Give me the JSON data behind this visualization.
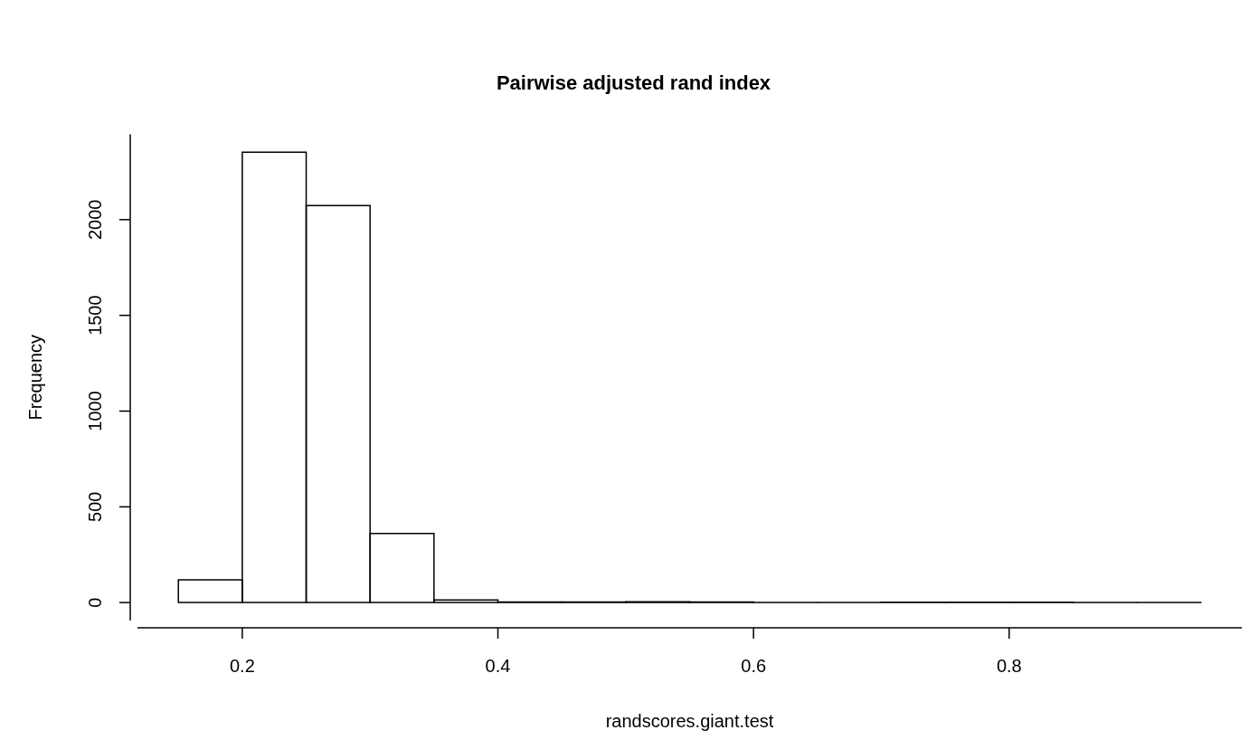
{
  "chart_data": {
    "type": "histogram",
    "title": "Pairwise adjusted rand index",
    "xlabel": "randscores.giant.test",
    "ylabel": "Frequency",
    "bins": [
      0.15,
      0.2,
      0.25,
      0.3,
      0.35,
      0.4,
      0.45,
      0.5,
      0.55,
      0.6,
      0.65,
      0.7,
      0.75,
      0.8,
      0.85,
      0.9,
      0.95
    ],
    "values": [
      119,
      2352,
      2073,
      361,
      14,
      3,
      3,
      4,
      3,
      1,
      0,
      2,
      2,
      2,
      0,
      1
    ],
    "color": "#000000",
    "xlim": [
      0.118,
      0.982
    ],
    "xticks": [
      0.2,
      0.4,
      0.6,
      0.8
    ],
    "ylim": [
      -94,
      2446
    ],
    "yticks": [
      0,
      500,
      1000,
      1500,
      2000
    ],
    "grid": false,
    "legend": false
  }
}
